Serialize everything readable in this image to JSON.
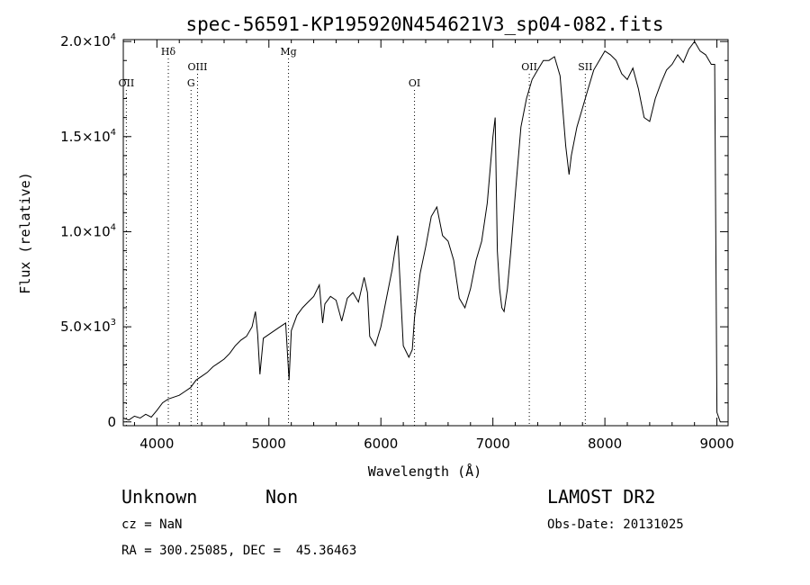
{
  "chart_data": {
    "type": "line",
    "title": "spec-56591-KP195920N454621V3_sp04-082.fits",
    "xlabel": "Wavelength (Å)",
    "ylabel": "Flux (relative)",
    "xlim": [
      3700,
      9100
    ],
    "ylim": [
      -200,
      20100
    ],
    "x_ticks": [
      {
        "value": 4000,
        "label": "4000"
      },
      {
        "value": 5000,
        "label": "5000"
      },
      {
        "value": 6000,
        "label": "6000"
      },
      {
        "value": 7000,
        "label": "7000"
      },
      {
        "value": 8000,
        "label": "8000"
      },
      {
        "value": 9000,
        "label": "9000"
      }
    ],
    "y_ticks": [
      {
        "value": 0,
        "mant": "0",
        "exp": ""
      },
      {
        "value": 5000,
        "mant": "5.0×10",
        "exp": "3"
      },
      {
        "value": 10000,
        "mant": "1.0×10",
        "exp": "4"
      },
      {
        "value": 15000,
        "mant": "1.5×10",
        "exp": "4"
      },
      {
        "value": 20000,
        "mant": "2.0×10",
        "exp": "4"
      }
    ],
    "spectral_lines": [
      {
        "name": "OII",
        "wavelength": 3727,
        "label_row": 2
      },
      {
        "name": "Hδ",
        "wavelength": 4102,
        "label_row": 0
      },
      {
        "name": "OIII",
        "wavelength": 4363,
        "label_row": 1
      },
      {
        "name": "G",
        "wavelength": 4305,
        "label_row": 2
      },
      {
        "name": "Mg",
        "wavelength": 5175,
        "label_row": 0
      },
      {
        "name": "OI",
        "wavelength": 6300,
        "label_row": 2
      },
      {
        "name": "OII",
        "wavelength": 7325,
        "label_row": 1
      },
      {
        "name": "SII",
        "wavelength": 7825,
        "label_row": 1
      }
    ],
    "series": [
      {
        "x": [
          3700,
          3750,
          3800,
          3850,
          3900,
          3950,
          4000,
          4050,
          4100,
          4150,
          4200,
          4250,
          4300,
          4350,
          4400,
          4450,
          4500,
          4550,
          4600,
          4650,
          4700,
          4750,
          4800,
          4850,
          4880,
          4900,
          4920,
          4950,
          5000,
          5050,
          5100,
          5150,
          5180,
          5200,
          5250,
          5300,
          5350,
          5400,
          5450,
          5480,
          5500,
          5550,
          5600,
          5650,
          5700,
          5750,
          5800,
          5850,
          5880,
          5900,
          5950,
          6000,
          6050,
          6100,
          6120,
          6150,
          6200,
          6250,
          6280,
          6300,
          6350,
          6400,
          6450,
          6500,
          6550,
          6600,
          6650,
          6700,
          6750,
          6800,
          6850,
          6900,
          6950,
          7000,
          7020,
          7040,
          7060,
          7080,
          7100,
          7130,
          7160,
          7200,
          7250,
          7300,
          7350,
          7400,
          7450,
          7500,
          7550,
          7600,
          7650,
          7680,
          7700,
          7750,
          7800,
          7850,
          7900,
          7950,
          8000,
          8050,
          8100,
          8150,
          8200,
          8250,
          8300,
          8350,
          8400,
          8450,
          8500,
          8550,
          8600,
          8650,
          8700,
          8750,
          8800,
          8850,
          8900,
          8950,
          8980,
          9000,
          9030
        ],
        "y": [
          200,
          100,
          300,
          200,
          400,
          250,
          600,
          1000,
          1200,
          1300,
          1400,
          1600,
          1800,
          2200,
          2400,
          2600,
          2900,
          3100,
          3300,
          3600,
          4000,
          4300,
          4500,
          5000,
          5800,
          4600,
          2500,
          4400,
          4600,
          4800,
          5000,
          5200,
          2200,
          4800,
          5600,
          6000,
          6300,
          6600,
          7200,
          5200,
          6200,
          6600,
          6400,
          5300,
          6500,
          6800,
          6300,
          7600,
          6800,
          4500,
          4000,
          5000,
          6500,
          8000,
          8800,
          9800,
          4000,
          3400,
          3800,
          5500,
          7800,
          9200,
          10800,
          11300,
          9800,
          9500,
          8500,
          6500,
          6000,
          7000,
          8500,
          9500,
          11500,
          15000,
          16000,
          9000,
          7000,
          6000,
          5800,
          7000,
          9000,
          12000,
          15500,
          17000,
          18000,
          18500,
          19000,
          19000,
          19200,
          18200,
          14500,
          13000,
          14000,
          15500,
          16500,
          17500,
          18500,
          19000,
          19500,
          19300,
          19000,
          18300,
          18000,
          18600,
          17500,
          16000,
          15800,
          17000,
          17800,
          18500,
          18800,
          19300,
          18900,
          19600,
          20000,
          19500,
          19300,
          18800,
          18800,
          500,
          0
        ]
      }
    ],
    "info": {
      "class": "Unknown",
      "subclass": "Non",
      "survey": "LAMOST DR2",
      "cz": "cz = NaN",
      "obs_date": "Obs-Date: 20131025",
      "coords": "RA = 300.25085, DEC =  45.36463"
    }
  }
}
